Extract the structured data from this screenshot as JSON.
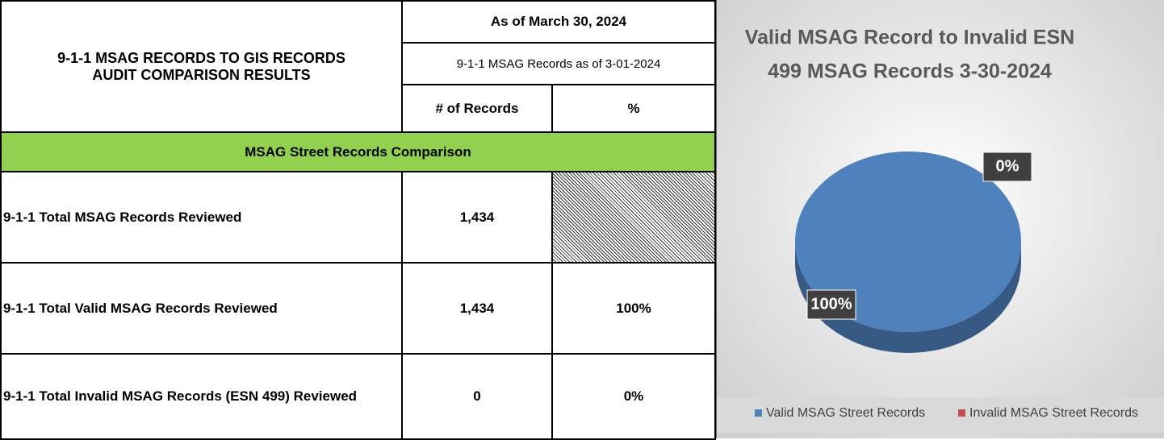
{
  "table": {
    "title": "9-1-1 MSAG RECORDS TO GIS RECORDS AUDIT COMPARISON RESULTS",
    "date_header": "As of March 30, 2024",
    "sub_header": "9-1-1 MSAG Records as of 3-01-2024",
    "columns": [
      "# of Records",
      "%"
    ],
    "section": "MSAG Street Records Comparison",
    "rows": [
      [
        "9-1-1 Total MSAG Records Reviewed",
        "1,434"
      ],
      [
        "9-1-1 Total Valid MSAG Records Reviewed",
        "1,434",
        "100%"
      ],
      [
        "9-1-1 Total Invalid MSAG Records (ESN 499) Reviewed",
        "0",
        "0%"
      ]
    ]
  },
  "chart_data": {
    "type": "pie",
    "title": "Valid MSAG Record to Invalid ESN",
    "subtitle": "499 MSAG Records 3-30-2024",
    "categories": [
      "Valid MSAG Street Records",
      "Invalid MSAG Street Records"
    ],
    "values": [
      100,
      0
    ],
    "value_labels": [
      "100%",
      "0%"
    ],
    "colors": [
      "#4f81bd",
      "#c0504d"
    ],
    "legend": "bottom"
  }
}
